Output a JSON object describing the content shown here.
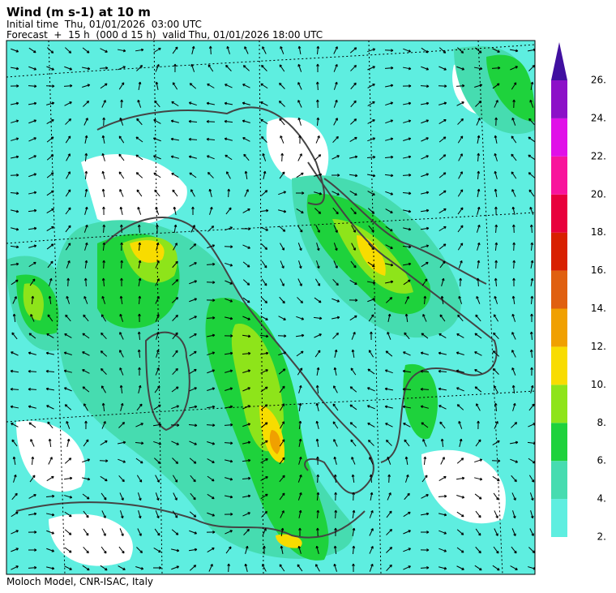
{
  "header": {
    "title": "Wind (m s-1) at 10 m",
    "initial_time": "Initial time  Thu, 01/01/2026  03:00 UTC",
    "forecast": "Forecast  +  15 h  (000 d 15 h)  valid Thu, 01/01/2026 18:00 UTC"
  },
  "footer": "Moloch Model, CNR-ISAC, Italy",
  "colorbar": {
    "ticks": [
      {
        "value": 2,
        "label": "2."
      },
      {
        "value": 4,
        "label": "4."
      },
      {
        "value": 6,
        "label": "6."
      },
      {
        "value": 8,
        "label": "8."
      },
      {
        "value": 10,
        "label": "10."
      },
      {
        "value": 12,
        "label": "12."
      },
      {
        "value": 14,
        "label": "14."
      },
      {
        "value": 16,
        "label": "16."
      },
      {
        "value": 18,
        "label": "18."
      },
      {
        "value": 20,
        "label": "20."
      },
      {
        "value": 22,
        "label": "22."
      },
      {
        "value": 24,
        "label": "24."
      },
      {
        "value": 26,
        "label": "26."
      }
    ],
    "colors": [
      "#5eeee0",
      "#46dcb0",
      "#1ed23c",
      "#8ee41a",
      "#f8dc00",
      "#f0a000",
      "#e06010",
      "#d82000",
      "#e8003c",
      "#f8149c",
      "#e010e8",
      "#8c10c8"
    ],
    "extend_color": "#4010a0"
  }
}
